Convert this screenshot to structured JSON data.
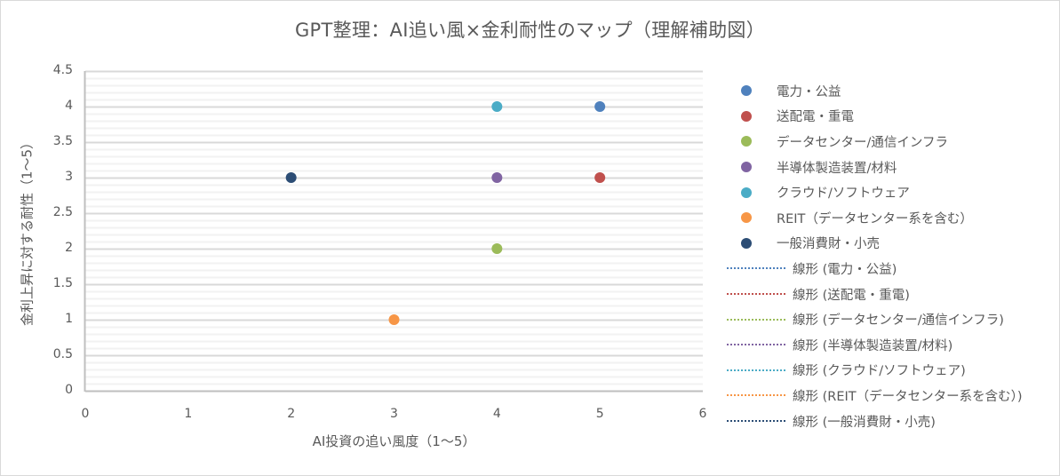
{
  "chart_data": {
    "type": "scatter",
    "title": "GPT整理：AI追い風×金利耐性のマップ（理解補助図）",
    "xlabel": "AI投資の追い風度（1〜5）",
    "ylabel": "金利上昇に対する耐性（1〜5）",
    "xlim": [
      0,
      6
    ],
    "ylim": [
      0,
      4.5
    ],
    "x_ticks": [
      "0",
      "1",
      "2",
      "3",
      "4",
      "5",
      "6"
    ],
    "y_ticks": [
      "0",
      "0.5",
      "1",
      "1.5",
      "2",
      "2.5",
      "3",
      "3.5",
      "4",
      "4.5"
    ],
    "grid": {
      "major_y_step": 0.5,
      "minor_y_step": 0.1,
      "x_grid": false
    },
    "legend_position": "right",
    "series": [
      {
        "name": "電力・公益",
        "color": "#4f81bd",
        "points": [
          {
            "x": 5,
            "y": 4
          }
        ],
        "trendline": "線形 (電力・公益)"
      },
      {
        "name": "送配電・重電",
        "color": "#c0504d",
        "points": [
          {
            "x": 5,
            "y": 3
          }
        ],
        "trendline": "線形 (送配電・重電)"
      },
      {
        "name": "データセンター/通信インフラ",
        "color": "#9bbb59",
        "points": [
          {
            "x": 4,
            "y": 2
          }
        ],
        "trendline": "線形 (データセンター/通信インフラ)"
      },
      {
        "name": "半導体製造装置/材料",
        "color": "#8064a2",
        "points": [
          {
            "x": 4,
            "y": 3
          }
        ],
        "trendline": "線形 (半導体製造装置/材料)"
      },
      {
        "name": "クラウド/ソフトウェア",
        "color": "#4bacc6",
        "points": [
          {
            "x": 4,
            "y": 4
          }
        ],
        "trendline": "線形 (クラウド/ソフトウェア)"
      },
      {
        "name": "REIT（データセンター系を含む）",
        "color": "#f79646",
        "points": [
          {
            "x": 3,
            "y": 1
          }
        ],
        "trendline": "線形 (REIT（データセンター系を含む）)"
      },
      {
        "name": "一般消費財・小売",
        "color": "#2c4d75",
        "points": [
          {
            "x": 2,
            "y": 3
          }
        ],
        "trendline": "線形 (一般消費財・小売)"
      }
    ]
  },
  "legend": {
    "markers": [
      {
        "label": "電力・公益",
        "color": "#4f81bd"
      },
      {
        "label": "送配電・重電",
        "color": "#c0504d"
      },
      {
        "label": "データセンター/通信インフラ",
        "color": "#9bbb59"
      },
      {
        "label": "半導体製造装置/材料",
        "color": "#8064a2"
      },
      {
        "label": "クラウド/ソフトウェア",
        "color": "#4bacc6"
      },
      {
        "label": "REIT（データセンター系を含む）",
        "color": "#f79646"
      },
      {
        "label": "一般消費財・小売",
        "color": "#2c4d75"
      }
    ],
    "trendlines": [
      {
        "label": "線形 (電力・公益)",
        "color": "#4f81bd"
      },
      {
        "label": "線形 (送配電・重電)",
        "color": "#c0504d"
      },
      {
        "label": "線形 (データセンター/通信インフラ)",
        "color": "#9bbb59"
      },
      {
        "label": "線形 (半導体製造装置/材料)",
        "color": "#8064a2"
      },
      {
        "label": "線形 (クラウド/ソフトウェア)",
        "color": "#4bacc6"
      },
      {
        "label": "線形 (REIT（データセンター系を含む）)",
        "color": "#f79646"
      },
      {
        "label": "線形 (一般消費財・小売)",
        "color": "#2c4d75"
      }
    ]
  },
  "colors": {
    "major_grid": "#d9d9d9",
    "minor_grid": "#f2f2f2",
    "axis": "#bfbfbf",
    "text": "#595959",
    "border": "#d9d9d9"
  }
}
